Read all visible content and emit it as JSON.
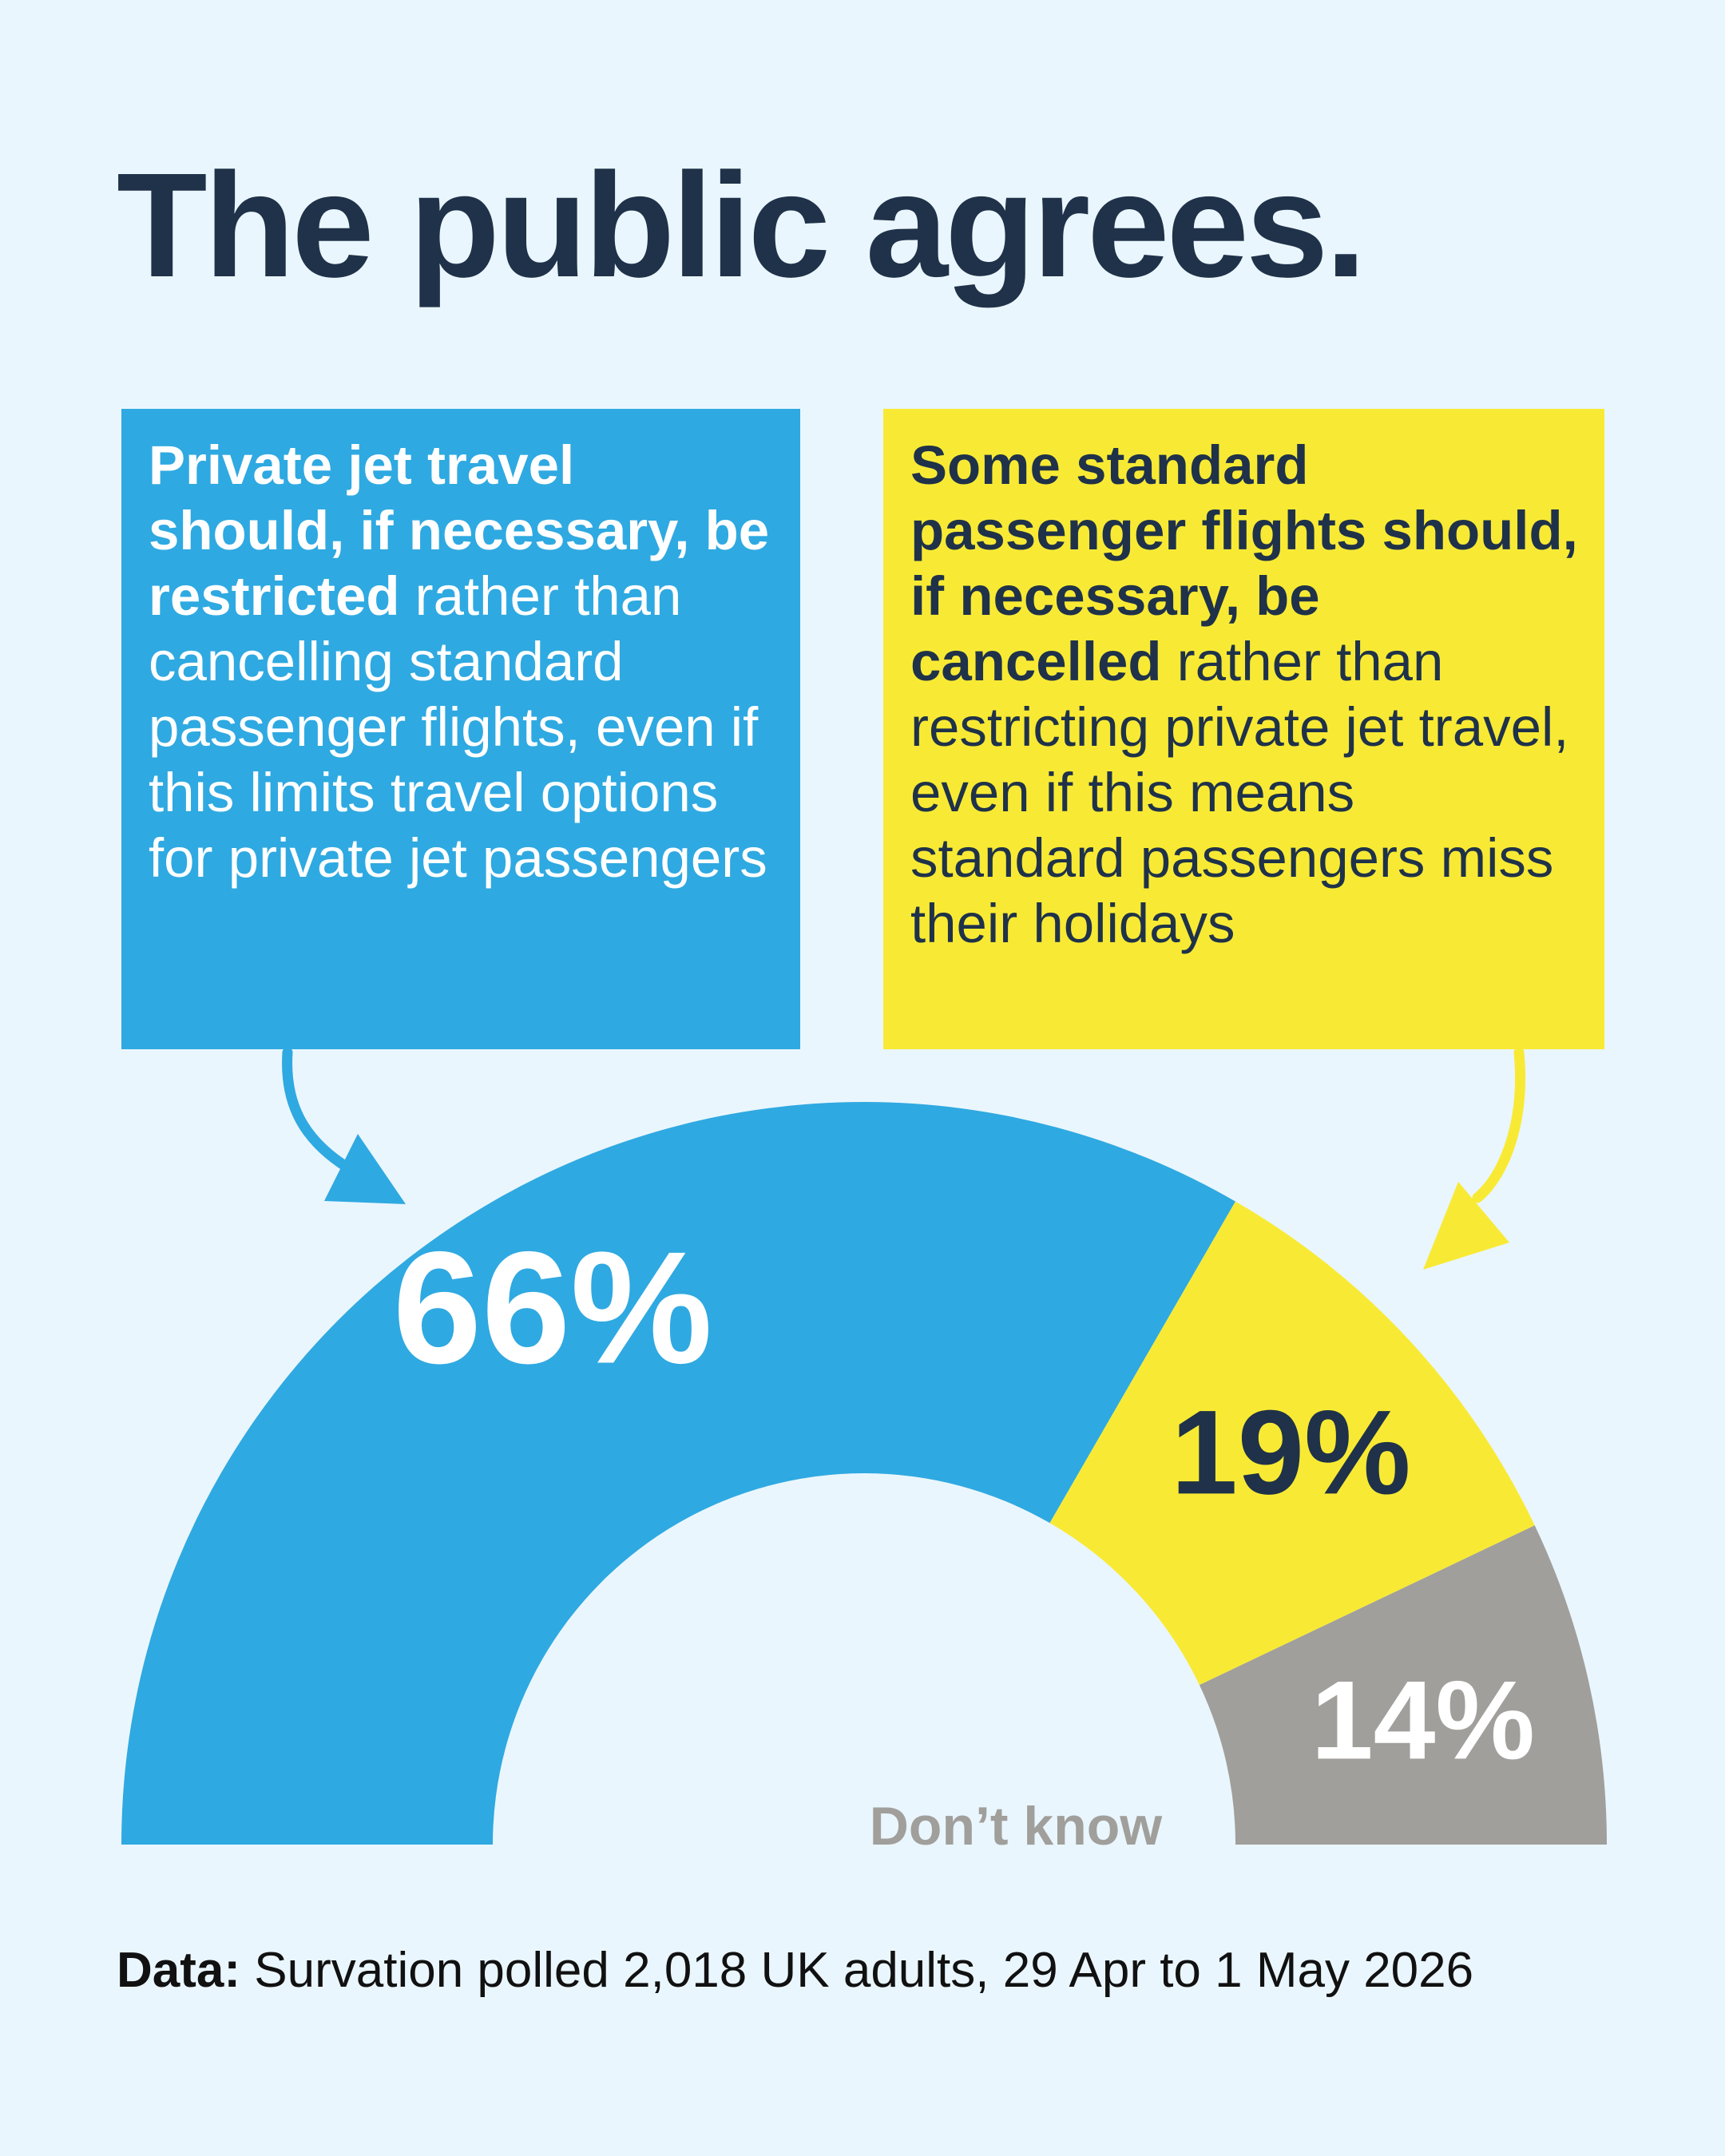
{
  "title": "The public agrees.",
  "left_box": {
    "bold": "Private jet travel should, if necessary, be restricted",
    "rest": " rather than cancelling standard passenger flights, even if this limits travel options for private jet passengers"
  },
  "right_box": {
    "bold": "Some standard passenger flights should, if necessary, be cancelled",
    "rest": " rather than restricting private jet travel, even if this means standard passengers miss their holidays"
  },
  "source": {
    "label": "Data:",
    "text": " Survation polled 2,018 UK adults, 29 Apr to 1 May 2026"
  },
  "colors": {
    "blue": "#2fa9e1",
    "yellow": "#f8ea34",
    "grey": "#a09f9c",
    "navy": "#1f3249"
  },
  "chart_data": {
    "type": "pie",
    "variant": "semi-donut",
    "categories": [
      "restrict private jets",
      "cancel standard flights",
      "Don’t know"
    ],
    "values": [
      66,
      19,
      14
    ],
    "labels": [
      "66%",
      "19%",
      "14%"
    ],
    "annotations": [
      "Don’t know"
    ]
  }
}
